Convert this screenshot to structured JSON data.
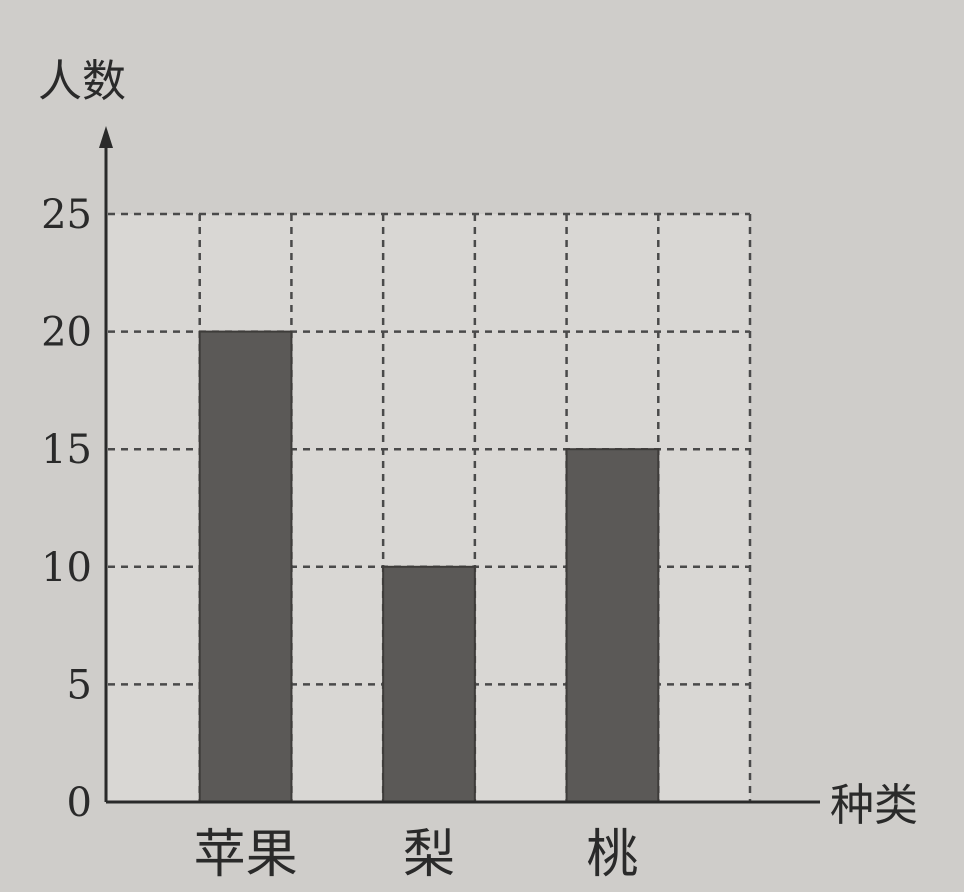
{
  "chart_data": {
    "type": "bar",
    "title": "",
    "ylabel": "人数",
    "xlabel": "种类",
    "categories": [
      "苹果",
      "梨",
      "桃"
    ],
    "values": [
      20,
      10,
      15
    ],
    "ylim": [
      0,
      25
    ],
    "yticks": [
      0,
      5,
      10,
      15,
      20,
      25
    ],
    "grid": true,
    "bar_color": "#5b5957"
  }
}
